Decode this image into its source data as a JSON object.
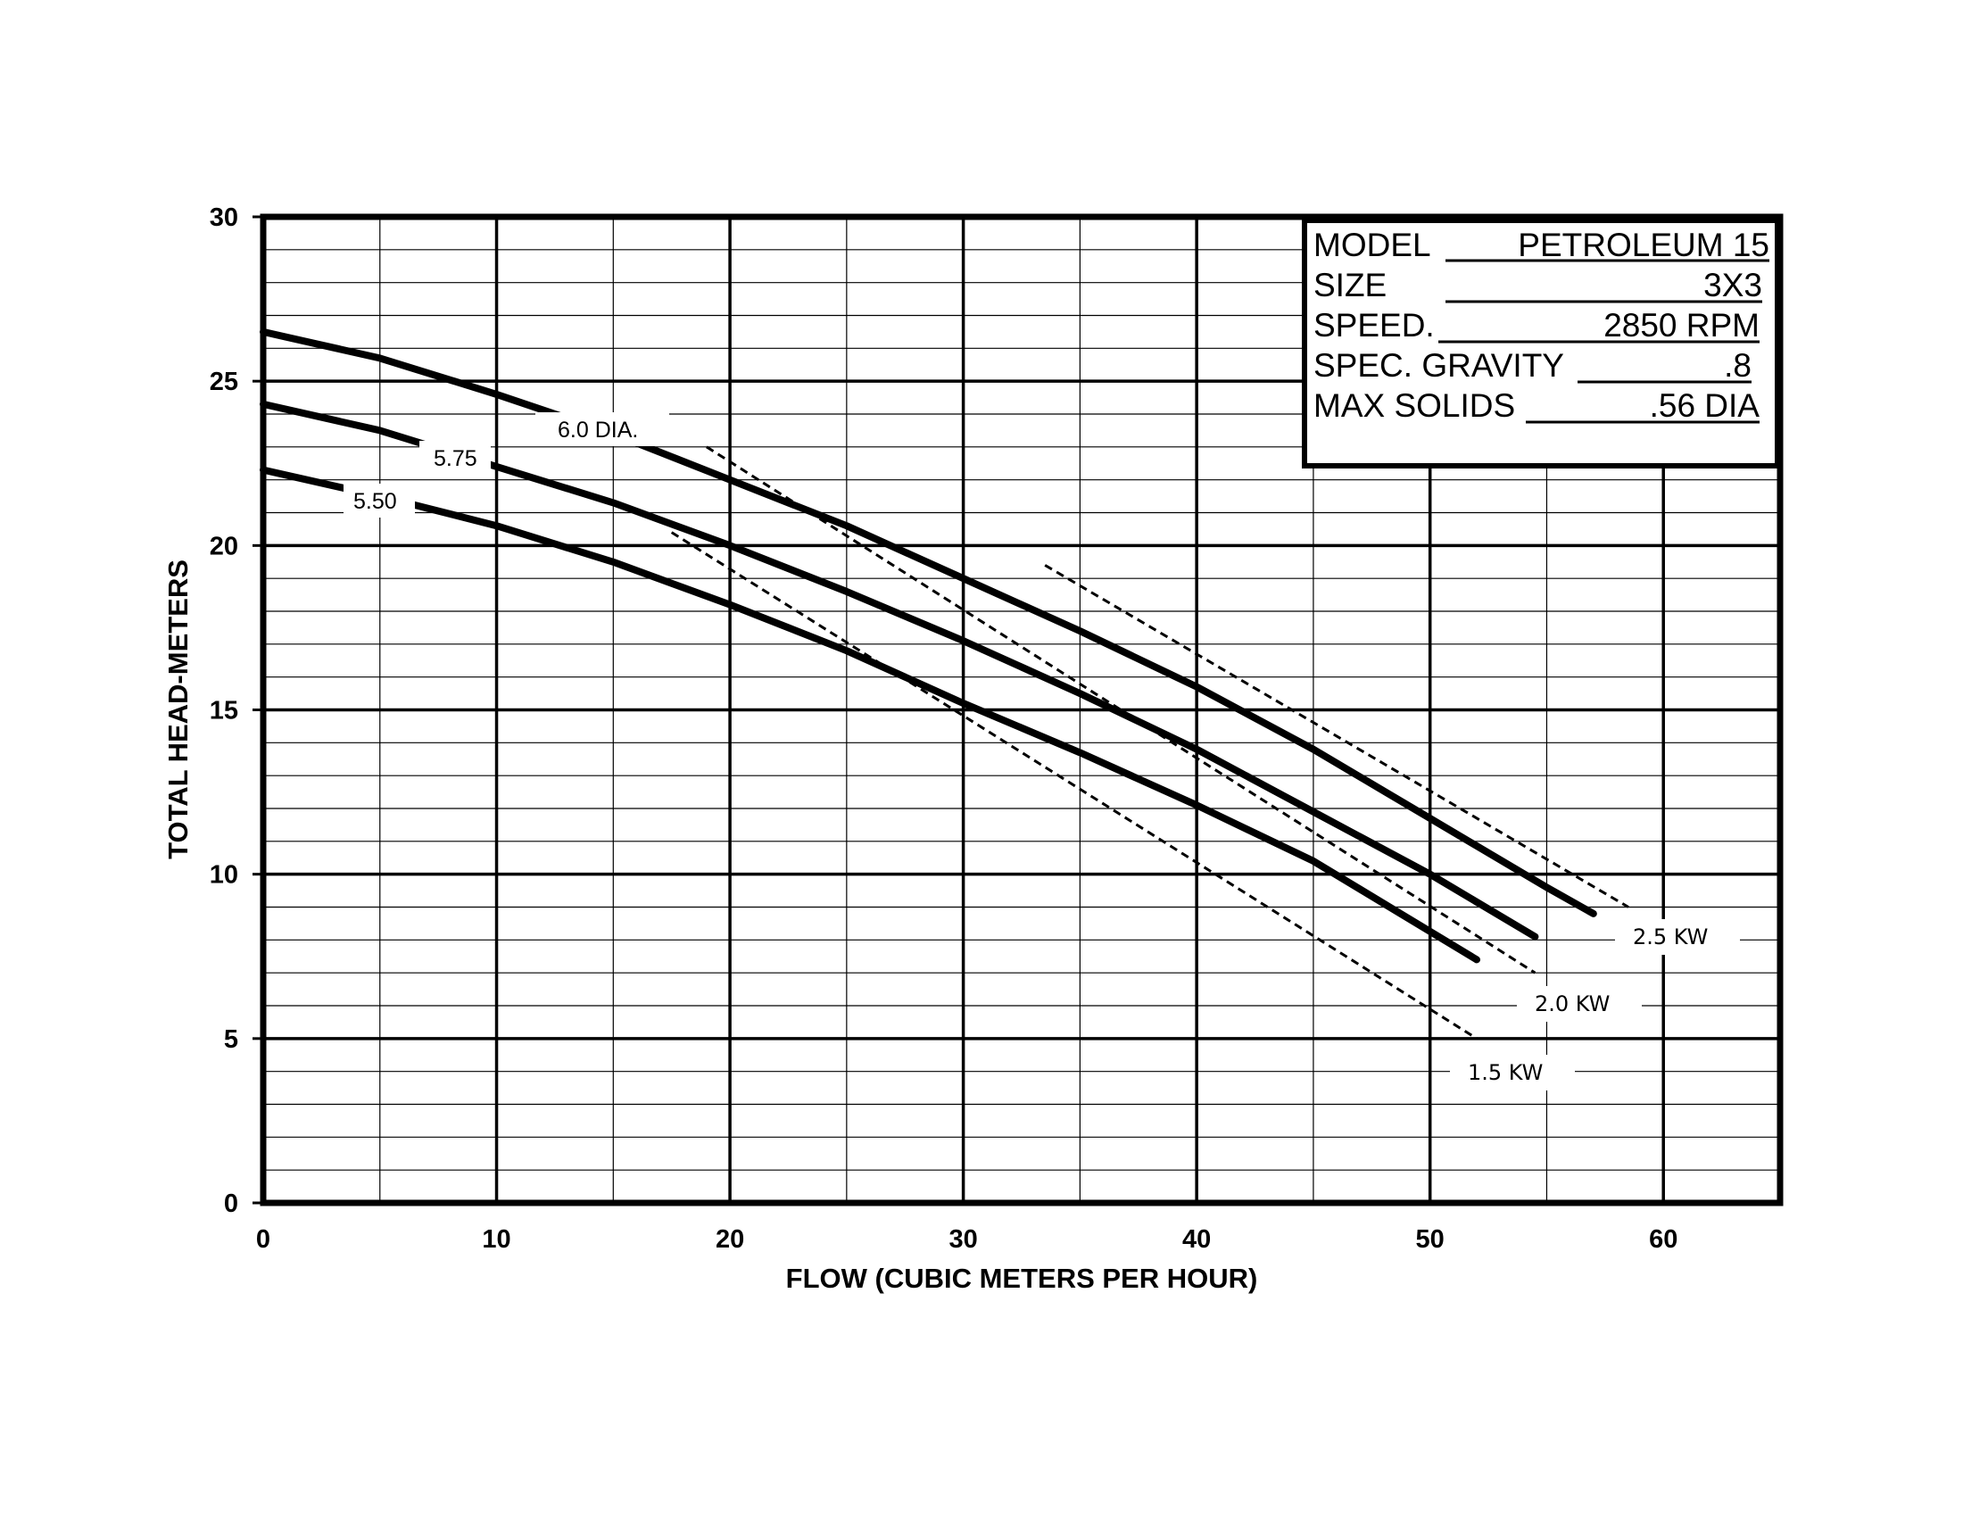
{
  "chart_data": {
    "type": "line",
    "title": "",
    "xlabel": "FLOW (CUBIC METERS PER HOUR)",
    "ylabel": "TOTAL HEAD-METERS",
    "xlim": [
      0,
      65
    ],
    "ylim": [
      0,
      30
    ],
    "x_ticks": [
      0,
      10,
      20,
      30,
      40,
      50,
      60
    ],
    "y_ticks": [
      0,
      5,
      10,
      15,
      20,
      25,
      30
    ],
    "grid": true,
    "series": [
      {
        "name": "6.0 DIA.",
        "style": "solid",
        "x": [
          0,
          5,
          10,
          15,
          20,
          25,
          30,
          35,
          40,
          45,
          50,
          55,
          57
        ],
        "y": [
          26.5,
          25.7,
          24.6,
          23.4,
          22.0,
          20.6,
          19.0,
          17.4,
          15.7,
          13.8,
          11.7,
          9.6,
          8.8
        ]
      },
      {
        "name": "5.75",
        "style": "solid",
        "x": [
          0,
          5,
          10,
          15,
          20,
          25,
          30,
          35,
          40,
          45,
          50,
          54.5
        ],
        "y": [
          24.3,
          23.5,
          22.4,
          21.3,
          20.0,
          18.6,
          17.1,
          15.5,
          13.8,
          11.9,
          10.0,
          8.1
        ]
      },
      {
        "name": "5.50",
        "style": "solid",
        "x": [
          0,
          5,
          10,
          15,
          20,
          25,
          30,
          35,
          40,
          45,
          52
        ],
        "y": [
          22.3,
          21.5,
          20.6,
          19.5,
          18.2,
          16.8,
          15.2,
          13.7,
          12.1,
          10.4,
          7.4
        ]
      },
      {
        "name": "2.5 KW",
        "style": "dashed",
        "x": [
          33.5,
          58.5
        ],
        "y": [
          19.4,
          9.0
        ]
      },
      {
        "name": "2.0 KW",
        "style": "dashed",
        "x": [
          19.0,
          54.5
        ],
        "y": [
          23.0,
          7.0
        ]
      },
      {
        "name": "1.5 KW",
        "style": "dashed",
        "x": [
          17.5,
          52.0
        ],
        "y": [
          20.4,
          5.0
        ]
      }
    ]
  },
  "labels": {
    "curve_60": "6.0 DIA.",
    "curve_575": "5.75",
    "curve_550": "5.50",
    "kw_25": "2.5 KW",
    "kw_20": "2.0 KW",
    "kw_15": "1.5 KW"
  },
  "spec_box": {
    "model_label": "MODEL",
    "model_value": "PETROLEUM 15",
    "size_label": "SIZE",
    "size_value": "3X3",
    "speed_label": "SPEED.",
    "speed_value": "2850 RPM",
    "gravity_label": "SPEC. GRAVITY",
    "gravity_value": ".8",
    "solids_label": "MAX SOLIDS",
    "solids_value": ".56 DIA"
  }
}
